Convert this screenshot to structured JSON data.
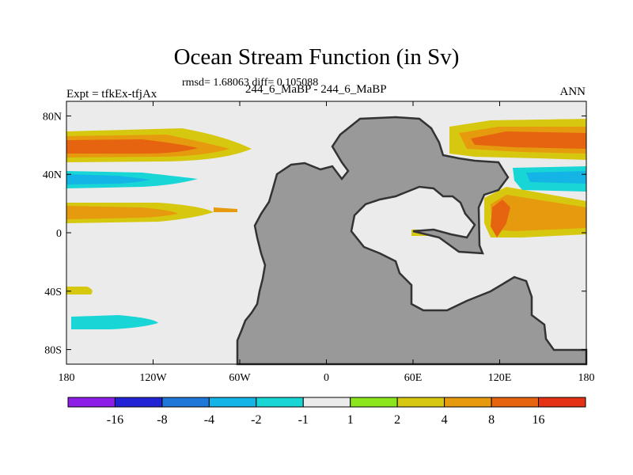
{
  "title": "Ocean Stream Function (in Sv)",
  "stats": "rmsd= 1.68063 diff= 0.105088",
  "experiment_label": "Expt = tfkEx-tfjAx",
  "experiment_value": "244_6_MaBP - 244_6_MaBP",
  "season": "ANN",
  "map": {
    "projection": "cylindrical equidistant",
    "lon_range": [
      -180,
      180
    ],
    "lat_range": [
      -90,
      90
    ],
    "land_color": "#999999",
    "x_ticks": [
      {
        "lon": -180,
        "label": "180"
      },
      {
        "lon": -120,
        "label": "120W"
      },
      {
        "lon": -60,
        "label": "60W"
      },
      {
        "lon": 0,
        "label": "0"
      },
      {
        "lon": 60,
        "label": "60E"
      },
      {
        "lon": 120,
        "label": "120E"
      },
      {
        "lon": 180,
        "label": "180"
      }
    ],
    "y_ticks": [
      {
        "lat": 80,
        "label": "80N"
      },
      {
        "lat": 40,
        "label": "40N"
      },
      {
        "lat": 0,
        "label": "0"
      },
      {
        "lat": -40,
        "label": "40S"
      },
      {
        "lat": -80,
        "label": "80S"
      }
    ]
  },
  "colorbar": {
    "colors": [
      "#8c1ee8",
      "#2323d6",
      "#1f78d8",
      "#14b4e6",
      "#19d6d6",
      "#ebebeb",
      "#8ce61e",
      "#d6c80f",
      "#e69b0f",
      "#e6640f",
      "#e63214"
    ],
    "labels": [
      "-16",
      "-8",
      "-4",
      "-2",
      "-1",
      "1",
      "2",
      "4",
      "8",
      "16"
    ]
  }
}
